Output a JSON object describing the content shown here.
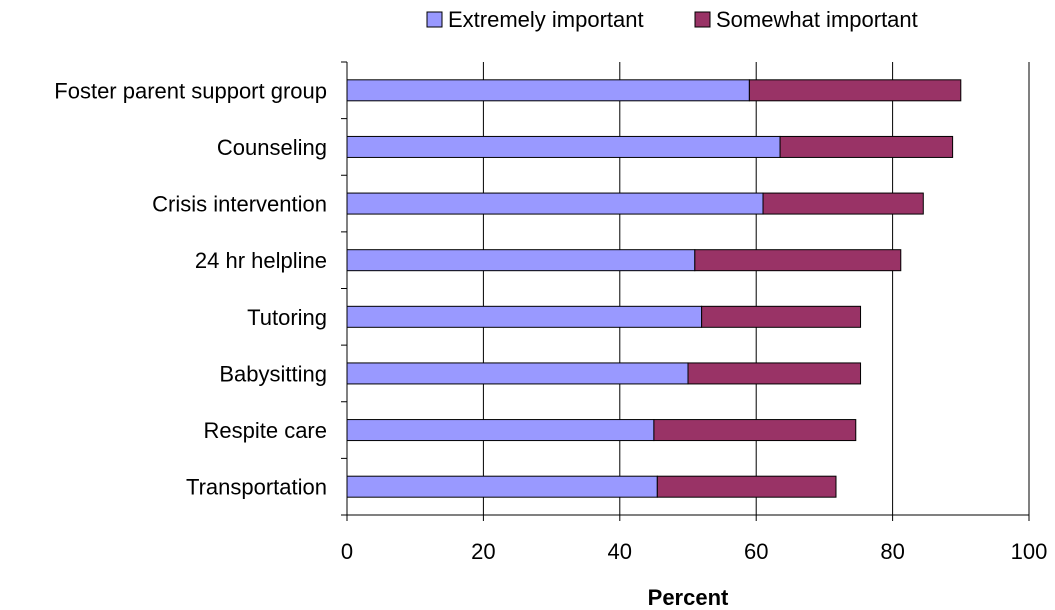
{
  "chart_data": {
    "type": "bar",
    "orientation": "horizontal",
    "stacked": true,
    "categories": [
      "Foster parent support group",
      "Counseling",
      "Crisis intervention",
      "24 hr helpline",
      "Tutoring",
      "Babysitting",
      "Respite care",
      "Transportation"
    ],
    "series": [
      {
        "name": "Extremely important",
        "color": "#9999ff",
        "values": [
          59,
          63.5,
          61,
          51,
          52,
          50,
          45,
          45.5
        ]
      },
      {
        "name": "Somewhat important",
        "color": "#993366",
        "values": [
          31,
          25.3,
          23.5,
          30.2,
          23.3,
          25.3,
          29.6,
          26.2
        ]
      }
    ],
    "xlabel": "Percent",
    "ylabel": "",
    "title": "",
    "xlim": [
      0,
      100
    ],
    "xticks": [
      "0",
      "20",
      "40",
      "60",
      "80",
      "100"
    ],
    "grid": "vertical",
    "legend": "top"
  }
}
